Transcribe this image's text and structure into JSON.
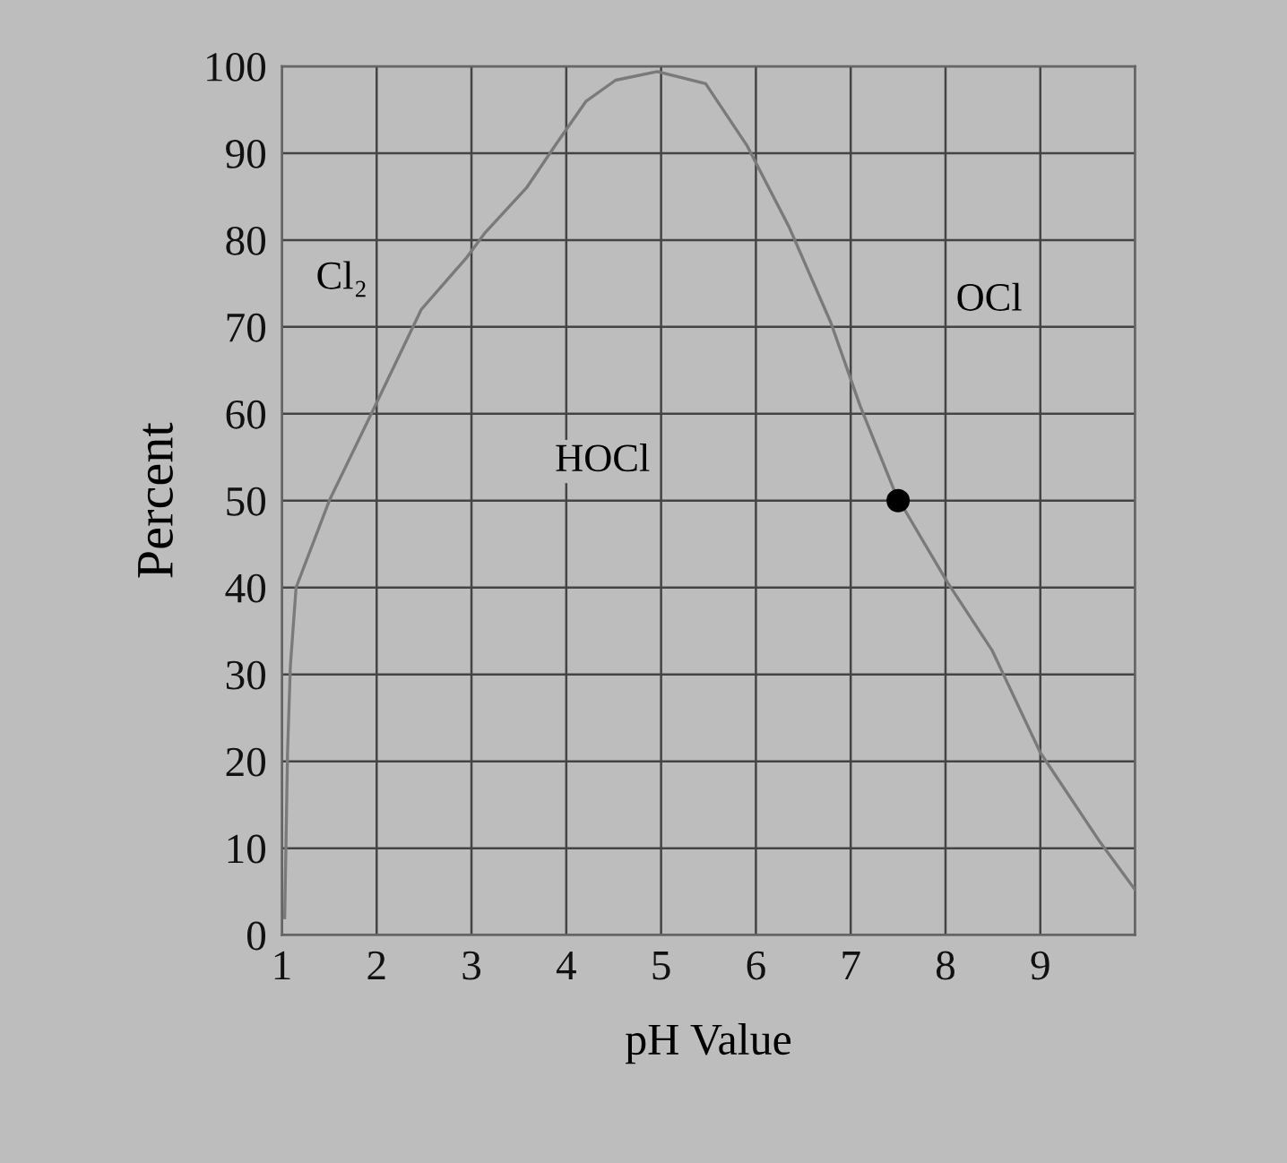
{
  "chart_data": {
    "type": "line",
    "xlabel": "pH Value",
    "ylabel": "Percent",
    "xlim": [
      1,
      10
    ],
    "ylim": [
      0,
      100
    ],
    "xticks": [
      1,
      2,
      3,
      4,
      5,
      6,
      7,
      8,
      9,
      {
        "value": 10,
        "label": null
      }
    ],
    "yticks": [
      0,
      10,
      20,
      30,
      40,
      50,
      60,
      70,
      80,
      90,
      100
    ],
    "grid": true,
    "marker": "none",
    "line_style": "solid",
    "series": [
      {
        "color": "#7a7a7a",
        "x": [
          1.03,
          1.06,
          1.09,
          1.15,
          1.5,
          1.97,
          2.47,
          2.95,
          3.14,
          3.58,
          3.89,
          4.21,
          4.52,
          4.96,
          5.47,
          5.91,
          6.35,
          6.79,
          7.1,
          7.48,
          8.02,
          8.49,
          9.0,
          9.63,
          10.0
        ],
        "values": [
          2,
          21,
          31,
          40,
          50,
          60.6,
          72,
          78,
          80.8,
          86,
          91,
          96,
          98.4,
          99.4,
          98,
          90.8,
          81.5,
          70.5,
          60.9,
          50.6,
          40.6,
          32.8,
          21,
          10.7,
          5.2
        ]
      },
      {
        "type": "scatter",
        "color": "#000000",
        "marker": "circle",
        "x": [
          7.5
        ],
        "values": [
          50
        ]
      }
    ],
    "annotations": [
      "Cl₂",
      "HOCl",
      "OCl"
    ]
  }
}
